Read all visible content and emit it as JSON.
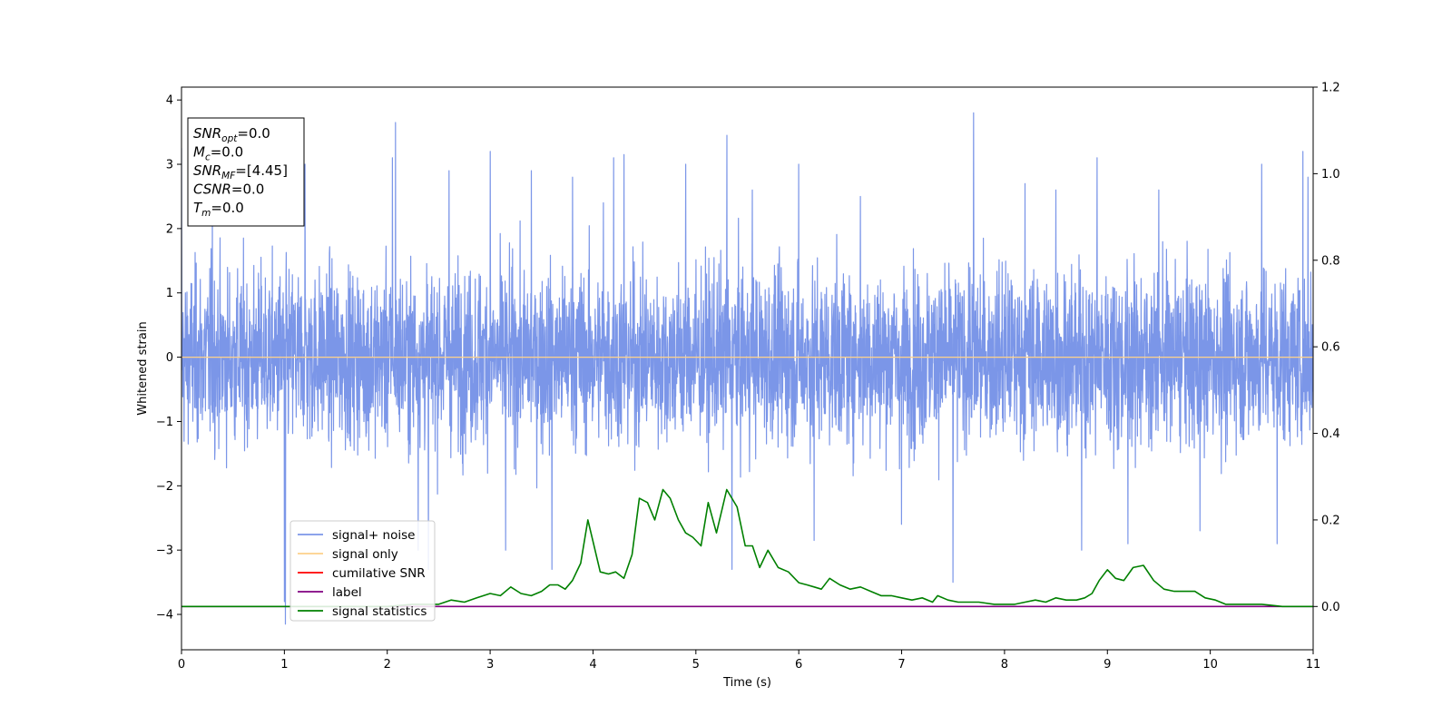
{
  "chart_data": {
    "type": "line",
    "xlabel": "Time (s)",
    "ylabel": "Whitened strain",
    "xlim": [
      0,
      11
    ],
    "ylim": [
      -4.55,
      4.2
    ],
    "y2lim": [
      -0.1,
      1.2
    ],
    "x_ticks": [
      "0",
      "1",
      "2",
      "3",
      "4",
      "5",
      "6",
      "7",
      "8",
      "9",
      "10",
      "11"
    ],
    "y_ticks": [
      "4",
      "3",
      "2",
      "1",
      "0",
      "−1",
      "−2",
      "−3",
      "−4"
    ],
    "y2_ticks": [
      "1.2",
      "1.0",
      "0.8",
      "0.6",
      "0.4",
      "0.2",
      "0.0"
    ],
    "grid": false,
    "legend_position": "lower-left",
    "legend": [
      {
        "label": "signal+ noise",
        "color": "#7b96e8"
      },
      {
        "label": "signal only",
        "color": "#fdd18a"
      },
      {
        "label": "cumilative SNR",
        "color": "#ff0000"
      },
      {
        "label": "label",
        "color": "#800080"
      },
      {
        "label": "signal statistics",
        "color": "#008000"
      }
    ],
    "info_box": [
      {
        "main": "SNR",
        "sub": "opt",
        "rest": "=0.0"
      },
      {
        "main": "M",
        "sub": "c",
        "rest": "=0.0"
      },
      {
        "main": "SNR",
        "sub": "MF",
        "rest": "=[4.45]"
      },
      {
        "main": "CSNR",
        "sub": "",
        "rest": "=0.0"
      },
      {
        "main": "T",
        "sub": "m",
        "rest": "=0.0"
      }
    ],
    "series": [
      {
        "name": "signal+ noise",
        "axis": "left",
        "color": "#7b96e8",
        "description_stats": {
          "mean": 0,
          "typical_band": [
            -2.0,
            2.3
          ],
          "extremes": [
            -4.15,
            3.8
          ]
        },
        "spikes": [
          [
            0.0,
            3.25
          ],
          [
            0.3,
            2.4
          ],
          [
            1.0,
            -3.8
          ],
          [
            1.01,
            -4.15
          ],
          [
            1.2,
            3.0
          ],
          [
            2.05,
            3.1
          ],
          [
            2.08,
            3.65
          ],
          [
            2.3,
            -3.0
          ],
          [
            2.4,
            -3.3
          ],
          [
            2.6,
            2.9
          ],
          [
            3.0,
            3.2
          ],
          [
            3.15,
            -3.0
          ],
          [
            3.4,
            2.9
          ],
          [
            3.6,
            -3.3
          ],
          [
            3.8,
            2.8
          ],
          [
            4.1,
            2.4
          ],
          [
            4.2,
            3.1
          ],
          [
            4.3,
            3.15
          ],
          [
            4.9,
            3.0
          ],
          [
            5.3,
            3.45
          ],
          [
            5.35,
            -3.3
          ],
          [
            5.55,
            2.6
          ],
          [
            6.0,
            3.0
          ],
          [
            6.15,
            -2.85
          ],
          [
            6.6,
            2.5
          ],
          [
            7.0,
            -2.6
          ],
          [
            7.5,
            -3.5
          ],
          [
            7.7,
            3.8
          ],
          [
            8.2,
            2.7
          ],
          [
            8.5,
            2.6
          ],
          [
            8.75,
            -3.0
          ],
          [
            8.9,
            3.1
          ],
          [
            9.2,
            -2.9
          ],
          [
            9.5,
            2.6
          ],
          [
            9.9,
            -2.7
          ],
          [
            10.5,
            3.0
          ],
          [
            10.65,
            -2.9
          ],
          [
            10.9,
            3.2
          ],
          [
            10.95,
            2.8
          ]
        ]
      },
      {
        "name": "signal only",
        "axis": "left",
        "color": "#fdd18a",
        "x": [
          0,
          11
        ],
        "y": [
          0,
          0
        ]
      },
      {
        "name": "label",
        "axis": "right",
        "color": "#800080",
        "x": [
          0,
          11
        ],
        "y": [
          0.0,
          0.0
        ]
      },
      {
        "name": "signal statistics",
        "axis": "right",
        "color": "#008000",
        "x": [
          0.0,
          0.25,
          0.5,
          0.75,
          1.0,
          1.25,
          1.5,
          1.75,
          2.0,
          2.25,
          2.5,
          2.62,
          2.75,
          2.87,
          3.0,
          3.1,
          3.2,
          3.3,
          3.4,
          3.5,
          3.58,
          3.66,
          3.73,
          3.8,
          3.88,
          3.95,
          4.0,
          4.07,
          4.15,
          4.22,
          4.3,
          4.38,
          4.45,
          4.53,
          4.6,
          4.68,
          4.75,
          4.83,
          4.9,
          4.97,
          5.05,
          5.12,
          5.2,
          5.3,
          5.4,
          5.48,
          5.55,
          5.62,
          5.7,
          5.8,
          5.9,
          6.0,
          6.08,
          6.15,
          6.22,
          6.3,
          6.4,
          6.5,
          6.6,
          6.7,
          6.8,
          6.9,
          7.0,
          7.1,
          7.2,
          7.3,
          7.35,
          7.45,
          7.55,
          7.65,
          7.75,
          7.9,
          8.0,
          8.1,
          8.2,
          8.3,
          8.4,
          8.5,
          8.6,
          8.7,
          8.78,
          8.85,
          8.92,
          9.0,
          9.08,
          9.16,
          9.25,
          9.35,
          9.45,
          9.55,
          9.65,
          9.75,
          9.85,
          9.95,
          10.05,
          10.15,
          10.3,
          10.5,
          10.7,
          10.9,
          11.0
        ],
        "y": [
          0.0,
          0.0,
          0.0,
          0.0,
          0.0,
          0.0,
          0.0,
          0.0,
          0.0,
          0.005,
          0.005,
          0.015,
          0.01,
          0.02,
          0.03,
          0.025,
          0.045,
          0.03,
          0.025,
          0.035,
          0.05,
          0.05,
          0.04,
          0.06,
          0.1,
          0.2,
          0.15,
          0.08,
          0.075,
          0.08,
          0.065,
          0.12,
          0.25,
          0.24,
          0.2,
          0.27,
          0.25,
          0.2,
          0.17,
          0.16,
          0.14,
          0.24,
          0.17,
          0.27,
          0.23,
          0.14,
          0.14,
          0.09,
          0.13,
          0.09,
          0.08,
          0.055,
          0.05,
          0.045,
          0.04,
          0.065,
          0.05,
          0.04,
          0.045,
          0.035,
          0.025,
          0.025,
          0.02,
          0.015,
          0.02,
          0.01,
          0.025,
          0.015,
          0.01,
          0.01,
          0.01,
          0.005,
          0.005,
          0.005,
          0.01,
          0.015,
          0.01,
          0.02,
          0.015,
          0.015,
          0.02,
          0.03,
          0.06,
          0.085,
          0.065,
          0.06,
          0.09,
          0.095,
          0.06,
          0.04,
          0.035,
          0.035,
          0.035,
          0.02,
          0.015,
          0.005,
          0.005,
          0.005,
          0.0,
          0.0,
          0.0
        ]
      }
    ]
  }
}
